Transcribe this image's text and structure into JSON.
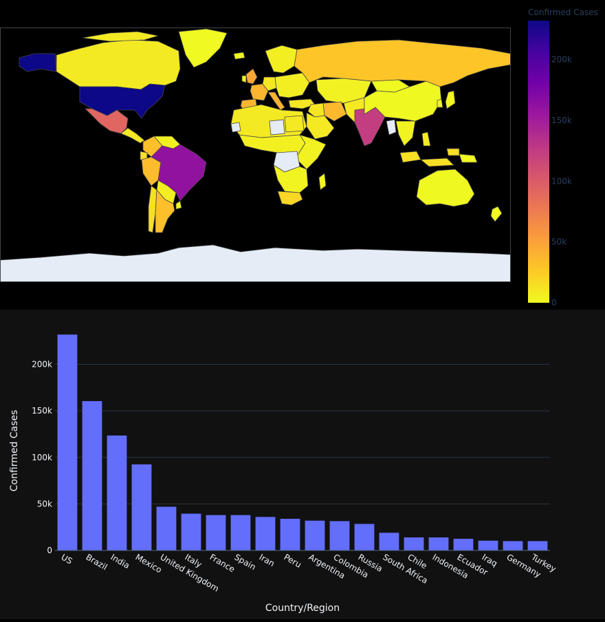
{
  "colors": {
    "bar": "#636efa",
    "page_bg": "#000000",
    "bar_panel_bg": "#111111",
    "grid": "#283442",
    "axis_text": "#f2f5fa",
    "colorbar_text": "#2a3f5f",
    "ocean": "#000000",
    "land_no_data": "#e5ecf6",
    "country_border": "#444444",
    "colorscale": [
      "#0d0887",
      "#46039f",
      "#7201a8",
      "#9c179e",
      "#bd3786",
      "#d8576b",
      "#ed7953",
      "#fb9f3a",
      "#fdca26",
      "#f0f921"
    ]
  },
  "map": {
    "colorbar_title": "Confirmed Cases",
    "colorbar_ticks": [
      "0",
      "50k",
      "100k",
      "150k",
      "200k"
    ]
  },
  "chart_data": [
    {
      "type": "choropleth",
      "projection": "equirectangular",
      "colorscale": "plasma (reversed)",
      "color_range": [
        0,
        232000
      ],
      "colorbar_title": "Confirmed Cases",
      "colorbar_tick_values": [
        0,
        50000,
        100000,
        150000,
        200000
      ],
      "colorbar_tick_labels": [
        "0",
        "50k",
        "100k",
        "150k",
        "200k"
      ],
      "locations": [
        "US",
        "Brazil",
        "India",
        "Mexico",
        "United Kingdom",
        "Italy",
        "France",
        "Spain",
        "Iran",
        "Peru",
        "Argentina",
        "Colombia",
        "Russia",
        "South Africa",
        "Chile",
        "Indonesia",
        "Ecuador",
        "Iraq",
        "Germany",
        "Turkey"
      ],
      "values": [
        232000,
        160500,
        123500,
        92500,
        47000,
        39500,
        38000,
        38000,
        36000,
        34000,
        32000,
        31500,
        28500,
        19000,
        14000,
        14000,
        12500,
        10500,
        10000,
        10000
      ]
    },
    {
      "type": "bar",
      "categories": [
        "US",
        "Brazil",
        "India",
        "Mexico",
        "United Kingdom",
        "Italy",
        "France",
        "Spain",
        "Iran",
        "Peru",
        "Argentina",
        "Colombia",
        "Russia",
        "South Africa",
        "Chile",
        "Indonesia",
        "Ecuador",
        "Iraq",
        "Germany",
        "Turkey"
      ],
      "values": [
        232000,
        160500,
        123500,
        92500,
        47000,
        39500,
        38000,
        38000,
        36000,
        34000,
        32000,
        31500,
        28500,
        19000,
        14000,
        14000,
        12500,
        10500,
        10000,
        10000
      ],
      "xlabel": "Country/Region",
      "ylabel": "Confirmed Cases",
      "ylim": [
        0,
        244000
      ],
      "yticks": [
        0,
        50000,
        100000,
        150000,
        200000
      ],
      "ytick_labels": [
        "0",
        "50k",
        "100k",
        "150k",
        "200k"
      ],
      "grid": true
    }
  ]
}
